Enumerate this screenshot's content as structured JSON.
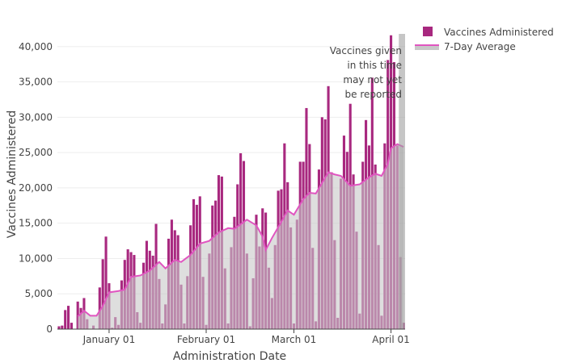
{
  "chart_data": {
    "type": "bar",
    "title": "",
    "xlabel": "Administration Date",
    "ylabel": "Vaccines Administered",
    "ylim": [
      0,
      41800
    ],
    "y_ticks": [
      0,
      5000,
      10000,
      15000,
      20000,
      25000,
      30000,
      35000,
      40000
    ],
    "y_tick_labels": [
      "0",
      "5,000",
      "10,000",
      "15,000",
      "20,000",
      "25,000",
      "30,000",
      "35,000",
      "40,000"
    ],
    "x_ticks": [
      {
        "date": "2021-01-01",
        "label": "January 01"
      },
      {
        "date": "2021-02-01",
        "label": "February 01"
      },
      {
        "date": "2021-03-01",
        "label": "March 01"
      },
      {
        "date": "2021-04-01",
        "label": "April 01"
      }
    ],
    "grid": true,
    "legend_position": "top-right",
    "series": [
      {
        "name": "Vaccines Administered",
        "type": "bar",
        "color": "#a8287f",
        "start_date": "2020-12-16",
        "values": [
          400,
          500,
          2700,
          3300,
          900,
          0,
          3900,
          3000,
          4400,
          1400,
          0,
          500,
          0,
          5900,
          9900,
          13100,
          6500,
          200,
          1700,
          600,
          6900,
          9800,
          11300,
          10900,
          10500,
          2400,
          900,
          9400,
          12500,
          11100,
          10400,
          14900,
          7100,
          800,
          3500,
          12800,
          15500,
          14000,
          13300,
          6300,
          800,
          7500,
          14700,
          18400,
          17600,
          18800,
          7400,
          600,
          10700,
          17500,
          18200,
          21800,
          21600,
          8600,
          800,
          11600,
          15900,
          20500,
          24900,
          23800,
          10700,
          400,
          7200,
          16200,
          11700,
          17100,
          16500,
          8700,
          4400,
          11900,
          19600,
          19800,
          26300,
          20800,
          14400,
          800,
          15500,
          23700,
          23700,
          31300,
          26200,
          11500,
          1100,
          22600,
          30000,
          29700,
          34400,
          22200,
          12600,
          1600,
          21300,
          27400,
          25100,
          31900,
          21900,
          13800,
          2200,
          23700,
          29600,
          26000,
          35600,
          23300,
          11900,
          1900,
          26300,
          38100,
          41600,
          37800,
          26000,
          10200,
          900
        ]
      },
      {
        "name": "7-Day Average",
        "type": "area",
        "color": "#e055c0",
        "fill": "#c8c8c8",
        "points": [
          [
            "2020-12-22",
            1800
          ],
          [
            "2020-12-24",
            2600
          ],
          [
            "2020-12-26",
            1900
          ],
          [
            "2020-12-28",
            1900
          ],
          [
            "2020-12-30",
            3300
          ],
          [
            "2021-01-01",
            5200
          ],
          [
            "2021-01-04",
            5400
          ],
          [
            "2021-01-06",
            5600
          ],
          [
            "2021-01-08",
            7400
          ],
          [
            "2021-01-11",
            7600
          ],
          [
            "2021-01-14",
            8300
          ],
          [
            "2021-01-17",
            9500
          ],
          [
            "2021-01-19",
            8600
          ],
          [
            "2021-01-22",
            9800
          ],
          [
            "2021-01-24",
            9500
          ],
          [
            "2021-01-27",
            10500
          ],
          [
            "2021-01-30",
            12100
          ],
          [
            "2021-02-02",
            12500
          ],
          [
            "2021-02-05",
            13700
          ],
          [
            "2021-02-08",
            14300
          ],
          [
            "2021-02-10",
            14200
          ],
          [
            "2021-02-14",
            15500
          ],
          [
            "2021-02-17",
            14700
          ],
          [
            "2021-02-19",
            13100
          ],
          [
            "2021-02-20",
            11200
          ],
          [
            "2021-02-22",
            12900
          ],
          [
            "2021-02-25",
            15200
          ],
          [
            "2021-02-27",
            16800
          ],
          [
            "2021-03-01",
            16200
          ],
          [
            "2021-03-04",
            18400
          ],
          [
            "2021-03-06",
            19300
          ],
          [
            "2021-03-08",
            19200
          ],
          [
            "2021-03-10",
            20700
          ],
          [
            "2021-03-12",
            22200
          ],
          [
            "2021-03-14",
            21900
          ],
          [
            "2021-03-16",
            21700
          ],
          [
            "2021-03-19",
            20300
          ],
          [
            "2021-03-22",
            20500
          ],
          [
            "2021-03-25",
            21500
          ],
          [
            "2021-03-27",
            22000
          ],
          [
            "2021-03-29",
            21700
          ],
          [
            "2021-03-31",
            23400
          ],
          [
            "2021-04-01",
            25600
          ],
          [
            "2021-04-03",
            26200
          ],
          [
            "2021-04-05",
            25800
          ]
        ]
      }
    ],
    "shaded_region": {
      "start_date": "2021-04-04",
      "end_date": "2021-04-05",
      "color": "#a0a0a0"
    },
    "annotation": {
      "lines": [
        "Vaccines given",
        "in this time",
        "may not yet",
        "be reported"
      ]
    }
  }
}
